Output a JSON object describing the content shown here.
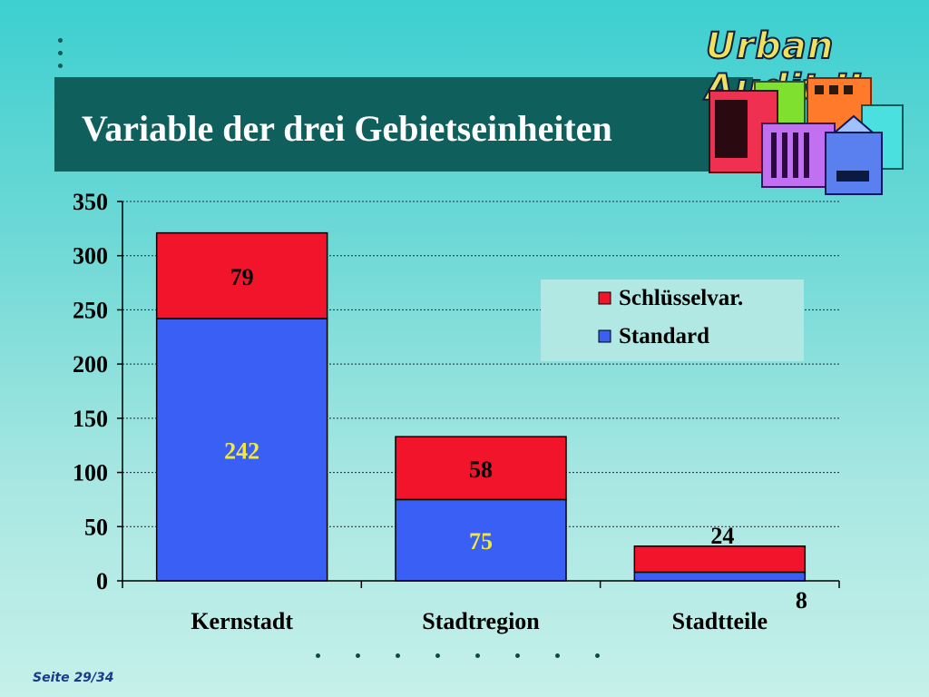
{
  "slide": {
    "title": "Variable der drei Gebietseinheiten",
    "logo_text": "Urban Audit II",
    "footer": "Seite 29/34"
  },
  "chart_data": {
    "type": "bar",
    "stacked": true,
    "categories": [
      "Kernstadt",
      "Stadtregion",
      "Stadtteile"
    ],
    "series": [
      {
        "name": "Standard",
        "values": [
          242,
          75,
          8
        ],
        "color": "#3a5ff5"
      },
      {
        "name": "Schlüsselvar.",
        "values": [
          79,
          58,
          24
        ],
        "color": "#f2142b"
      }
    ],
    "ylim": [
      0,
      350
    ],
    "yticks": [
      0,
      50,
      100,
      150,
      200,
      250,
      300,
      350
    ],
    "grid": true,
    "legend": "top-right",
    "label_colors": {
      "Standard": "#f2e93c",
      "Schlüsselvar.": "#000000"
    }
  }
}
